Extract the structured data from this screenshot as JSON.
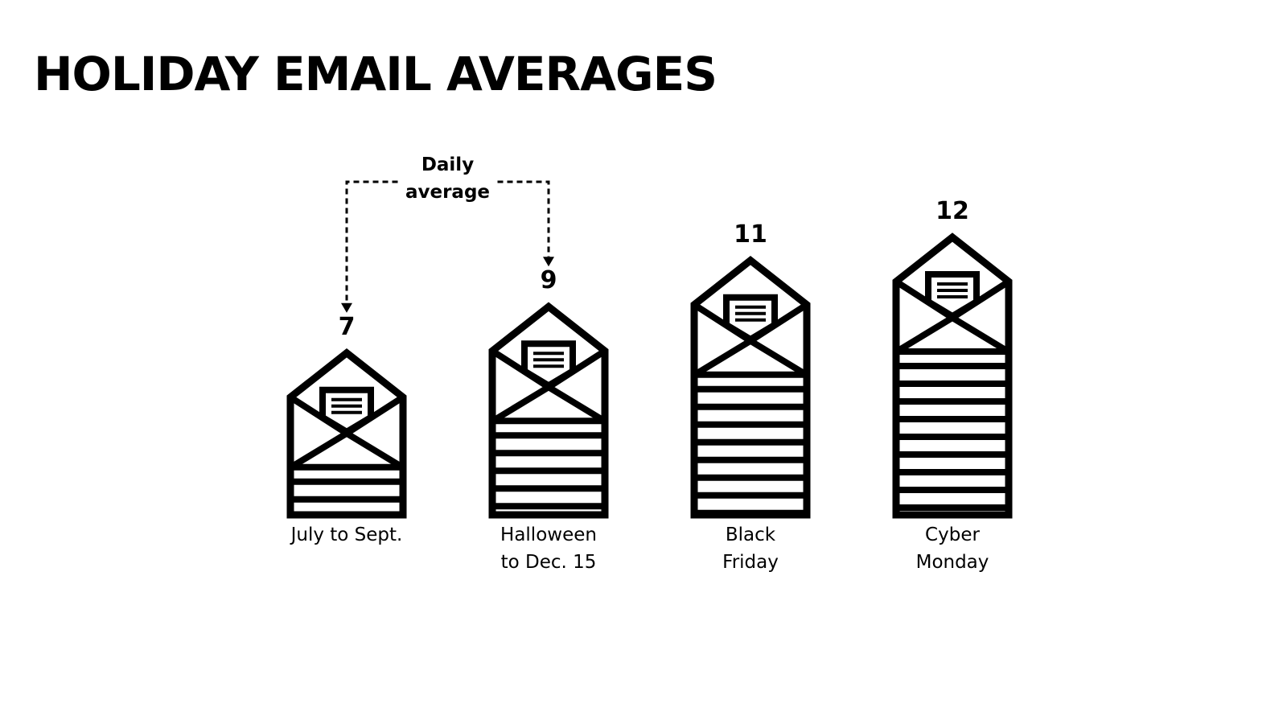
{
  "chart_data": {
    "type": "pictograph",
    "title": "HOLIDAY EMAIL AVERAGES",
    "annotation": "Daily\naverage",
    "categories": [
      "July to Sept.",
      "Halloween\nto Dec. 15",
      "Black\nFriday",
      "Cyber\nMonday"
    ],
    "values": [
      7,
      9,
      11,
      12
    ],
    "color": "#000000"
  }
}
